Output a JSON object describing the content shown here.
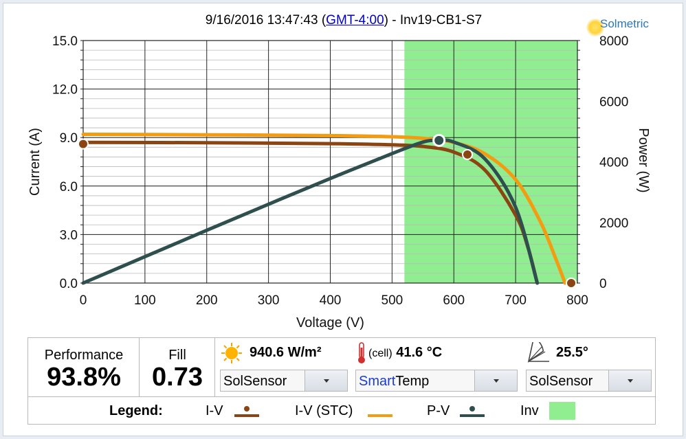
{
  "header": {
    "datetime": "9/16/2016 13:47:43 (",
    "timezone_link": "GMT-4:00",
    "suffix": ") - Inv19-CB1-S7"
  },
  "logo": {
    "text": "Solmetric"
  },
  "chart_data": {
    "type": "line",
    "xlabel": "Voltage (V)",
    "ylabel": "Current (A)",
    "y2label": "Power (W)",
    "xlim": [
      0,
      800
    ],
    "ylim": [
      0,
      15
    ],
    "y2lim": [
      0,
      8000
    ],
    "x_ticks": [
      "0",
      "100",
      "200",
      "300",
      "400",
      "500",
      "600",
      "700",
      "800"
    ],
    "y_ticks": [
      "0.0",
      "3.0",
      "6.0",
      "9.0",
      "12.0",
      "15.0"
    ],
    "y2_ticks": [
      "0",
      "2000",
      "4000",
      "6000",
      "8000"
    ],
    "grid": true,
    "inverter_window": [
      520,
      800
    ],
    "series": [
      {
        "name": "I-V",
        "axis": "left",
        "color": "#8b4513",
        "x": [
          0,
          200,
          400,
          500,
          550,
          600,
          650,
          700,
          720,
          735
        ],
        "y": [
          8.7,
          8.68,
          8.62,
          8.55,
          8.45,
          8.1,
          7.0,
          4.2,
          2.2,
          0.0
        ]
      },
      {
        "name": "I-V (STC)",
        "axis": "left",
        "color": "#f39c12",
        "x": [
          0,
          200,
          400,
          500,
          550,
          600,
          650,
          700,
          740,
          765,
          780
        ],
        "y": [
          9.2,
          9.17,
          9.12,
          9.05,
          8.95,
          8.7,
          8.0,
          6.4,
          3.8,
          1.5,
          0.0
        ]
      },
      {
        "name": "P-V",
        "axis": "right",
        "color": "#2f4f4f",
        "x": [
          0,
          100,
          200,
          300,
          400,
          500,
          550,
          576,
          600,
          650,
          700,
          735
        ],
        "y": [
          0,
          870,
          1740,
          2600,
          3450,
          4270,
          4650,
          4705,
          4650,
          4100,
          2500,
          0
        ]
      }
    ],
    "markers": [
      {
        "series": "I-V",
        "x": 0,
        "y": 8.6,
        "axis": "left"
      },
      {
        "series": "I-V",
        "x": 622,
        "y": 7.95,
        "axis": "left"
      },
      {
        "series": "I-V",
        "x": 790,
        "y": 0,
        "axis": "left"
      },
      {
        "series": "P-V",
        "x": 576,
        "y": 4705,
        "axis": "right"
      }
    ]
  },
  "panel": {
    "performance_label": "Performance",
    "performance_value": "93.8%",
    "fill_label": "Fill",
    "fill_value": "0.73",
    "irradiance_value": "940.6 W/m²",
    "irradiance_source": "SolSensor",
    "temp_prefix": "(cell)",
    "temp_value": "41.6 °C",
    "temp_source_a": "Smart",
    "temp_source_b": "Temp",
    "tilt_value": "25.5°",
    "tilt_source": "SolSensor"
  },
  "legend": {
    "title": "Legend:",
    "iv": "I-V",
    "iv_stc": "I-V (STC)",
    "pv": "P-V",
    "inv": "Inv"
  },
  "colors": {
    "iv": "#8b4513",
    "iv_stc": "#f39c12",
    "pv": "#2f4f4f",
    "inv": "#90ee90"
  }
}
